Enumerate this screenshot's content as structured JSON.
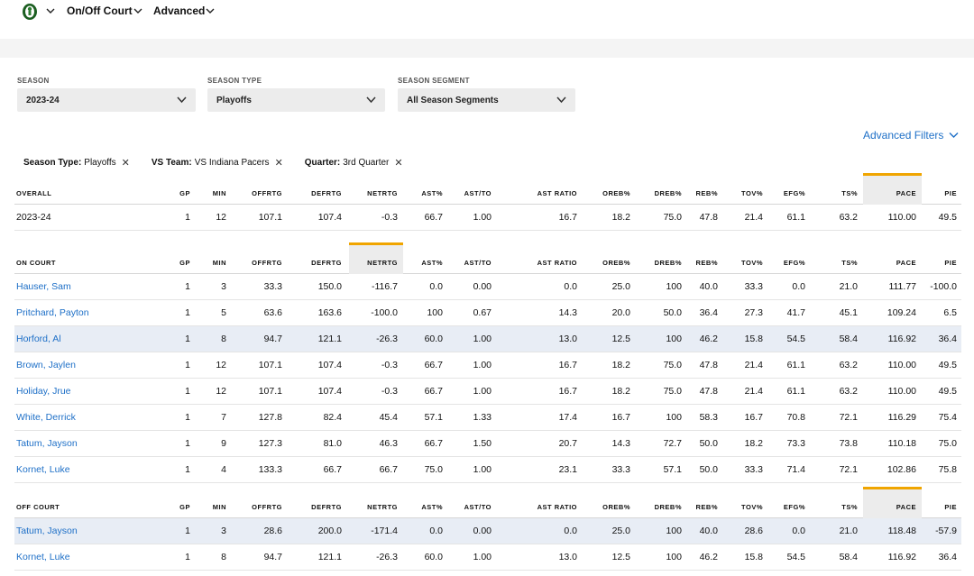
{
  "nav": {
    "items": [
      "On/Off Court",
      "Advanced"
    ]
  },
  "filters": [
    {
      "label": "SEASON",
      "value": "2023-24"
    },
    {
      "label": "SEASON TYPE",
      "value": "Playoffs"
    },
    {
      "label": "SEASON SEGMENT",
      "value": "All Season Segments"
    }
  ],
  "advanced_filters_label": "Advanced Filters",
  "chips": [
    {
      "key": "Season Type:",
      "value": "Playoffs"
    },
    {
      "key": "VS Team:",
      "value": "VS Indiana Pacers"
    },
    {
      "key": "Quarter:",
      "value": "3rd Quarter"
    }
  ],
  "columns": [
    "GP",
    "MIN",
    "OFFRTG",
    "DEFRTG",
    "NETRTG",
    "AST%",
    "AST/TO",
    "AST RATIO",
    "OREB%",
    "DREB%",
    "REB%",
    "TOV%",
    "EFG%",
    "TS%",
    "PACE",
    "PIE"
  ],
  "overall": {
    "title": "OVERALL",
    "rows": [
      {
        "name": "2023-24",
        "vals": [
          "1",
          "12",
          "107.1",
          "107.4",
          "-0.3",
          "66.7",
          "1.00",
          "16.7",
          "18.2",
          "75.0",
          "47.8",
          "21.4",
          "61.1",
          "63.2",
          "110.00",
          "49.5"
        ]
      }
    ]
  },
  "on_court": {
    "title": "ON COURT",
    "rows": [
      {
        "name": "Hauser, Sam",
        "vals": [
          "1",
          "3",
          "33.3",
          "150.0",
          "-116.7",
          "0.0",
          "0.00",
          "0.0",
          "25.0",
          "100",
          "40.0",
          "33.3",
          "0.0",
          "21.0",
          "111.77",
          "-100.0"
        ]
      },
      {
        "name": "Pritchard, Payton",
        "vals": [
          "1",
          "5",
          "63.6",
          "163.6",
          "-100.0",
          "100",
          "0.67",
          "14.3",
          "20.0",
          "50.0",
          "36.4",
          "27.3",
          "41.7",
          "45.1",
          "109.24",
          "6.5"
        ]
      },
      {
        "name": "Horford, Al",
        "vals": [
          "1",
          "8",
          "94.7",
          "121.1",
          "-26.3",
          "60.0",
          "1.00",
          "13.0",
          "12.5",
          "100",
          "46.2",
          "15.8",
          "54.5",
          "58.4",
          "116.92",
          "36.4"
        ]
      },
      {
        "name": "Brown, Jaylen",
        "vals": [
          "1",
          "12",
          "107.1",
          "107.4",
          "-0.3",
          "66.7",
          "1.00",
          "16.7",
          "18.2",
          "75.0",
          "47.8",
          "21.4",
          "61.1",
          "63.2",
          "110.00",
          "49.5"
        ]
      },
      {
        "name": "Holiday, Jrue",
        "vals": [
          "1",
          "12",
          "107.1",
          "107.4",
          "-0.3",
          "66.7",
          "1.00",
          "16.7",
          "18.2",
          "75.0",
          "47.8",
          "21.4",
          "61.1",
          "63.2",
          "110.00",
          "49.5"
        ]
      },
      {
        "name": "White, Derrick",
        "vals": [
          "1",
          "7",
          "127.8",
          "82.4",
          "45.4",
          "57.1",
          "1.33",
          "17.4",
          "16.7",
          "100",
          "58.3",
          "16.7",
          "70.8",
          "72.1",
          "116.29",
          "75.4"
        ]
      },
      {
        "name": "Tatum, Jayson",
        "vals": [
          "1",
          "9",
          "127.3",
          "81.0",
          "46.3",
          "66.7",
          "1.50",
          "20.7",
          "14.3",
          "72.7",
          "50.0",
          "18.2",
          "73.3",
          "73.8",
          "110.18",
          "75.0"
        ]
      },
      {
        "name": "Kornet, Luke",
        "vals": [
          "1",
          "4",
          "133.3",
          "66.7",
          "66.7",
          "75.0",
          "1.00",
          "23.1",
          "33.3",
          "57.1",
          "50.0",
          "33.3",
          "71.4",
          "72.1",
          "102.86",
          "75.8"
        ]
      }
    ]
  },
  "off_court": {
    "title": "OFF COURT",
    "rows": [
      {
        "name": "Tatum, Jayson",
        "vals": [
          "1",
          "3",
          "28.6",
          "200.0",
          "-171.4",
          "0.0",
          "0.00",
          "0.0",
          "25.0",
          "100",
          "40.0",
          "28.6",
          "0.0",
          "21.0",
          "118.48",
          "-57.9"
        ]
      },
      {
        "name": "Kornet, Luke",
        "vals": [
          "1",
          "8",
          "94.7",
          "121.1",
          "-26.3",
          "60.0",
          "1.00",
          "13.0",
          "12.5",
          "100",
          "46.2",
          "15.8",
          "54.5",
          "58.4",
          "116.92",
          "36.4"
        ]
      }
    ]
  },
  "colors": {
    "link": "#1d6fc7",
    "sort_accent": "#f0a500",
    "highlight_row": "#e8edf5"
  }
}
